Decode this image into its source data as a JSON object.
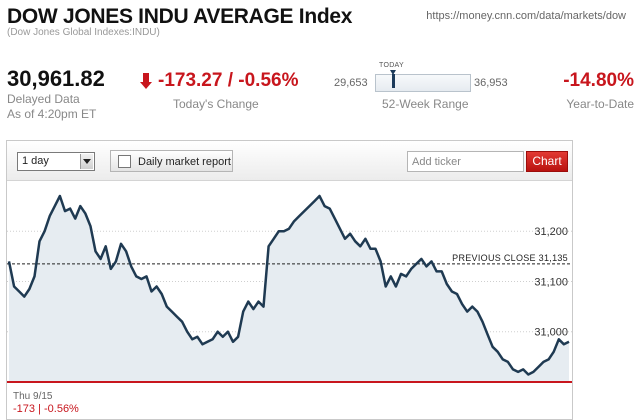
{
  "header": {
    "title": "DOW JONES INDU AVERAGE Index",
    "subtitle": "(Dow Jones Global Indexes:INDU)",
    "url": "https://money.cnn.com/data/markets/dow"
  },
  "quote": {
    "price": "30,961.82",
    "delayed_line1": "Delayed Data",
    "delayed_line2": "As of 4:20pm ET",
    "change": "-173.27 / -0.56%",
    "change_label": "Today's Change",
    "range_low": "29,653",
    "range_high": "36,953",
    "range_today_label": "TODAY",
    "range_label": "52-Week Range",
    "range_position": 0.19,
    "ytd": "-14.80%",
    "ytd_label": "Year-to-Date"
  },
  "toolbar": {
    "period": "1 day",
    "report_label": "Daily market report",
    "ticker_placeholder": "Add ticker",
    "chart_button": "Chart"
  },
  "colors": {
    "negative": "#c8161d",
    "line": "#1f3a52",
    "fill": "#e6ecf1"
  },
  "chart_data": {
    "type": "area",
    "ylim": [
      30900,
      31280
    ],
    "yticks": [
      31000,
      31100,
      31200
    ],
    "ytick_labels": [
      "31,000",
      "31,100",
      "31,200"
    ],
    "previous_close": 31135,
    "previous_close_label": "PREVIOUS CLOSE 31,135",
    "y": [
      31140,
      31090,
      31080,
      31070,
      31085,
      31110,
      31180,
      31200,
      31230,
      31250,
      31270,
      31240,
      31245,
      31225,
      31250,
      31235,
      31210,
      31160,
      31145,
      31170,
      31125,
      31140,
      31175,
      31160,
      31130,
      31110,
      31105,
      31110,
      31080,
      31090,
      31075,
      31050,
      31040,
      31030,
      31020,
      31000,
      30985,
      30990,
      30975,
      30980,
      30985,
      31000,
      30990,
      31000,
      30980,
      30990,
      31040,
      31060,
      31045,
      31060,
      31050,
      31170,
      31185,
      31200,
      31200,
      31205,
      31220,
      31230,
      31240,
      31250,
      31260,
      31270,
      31250,
      31245,
      31225,
      31205,
      31185,
      31195,
      31180,
      31170,
      31185,
      31165,
      31165,
      31140,
      31090,
      31110,
      31090,
      31115,
      31110,
      31125,
      31135,
      31145,
      31130,
      31140,
      31120,
      31120,
      31095,
      31080,
      31075,
      31055,
      31040,
      31050,
      31040,
      31020,
      30995,
      30970,
      30960,
      30945,
      30940,
      30925,
      30920,
      30925,
      30915,
      30920,
      30930,
      30940,
      30945,
      30960,
      30985,
      30975,
      30980
    ],
    "footer_date": "Thu 9/15",
    "footer_change": "-173 | -0.56%"
  }
}
